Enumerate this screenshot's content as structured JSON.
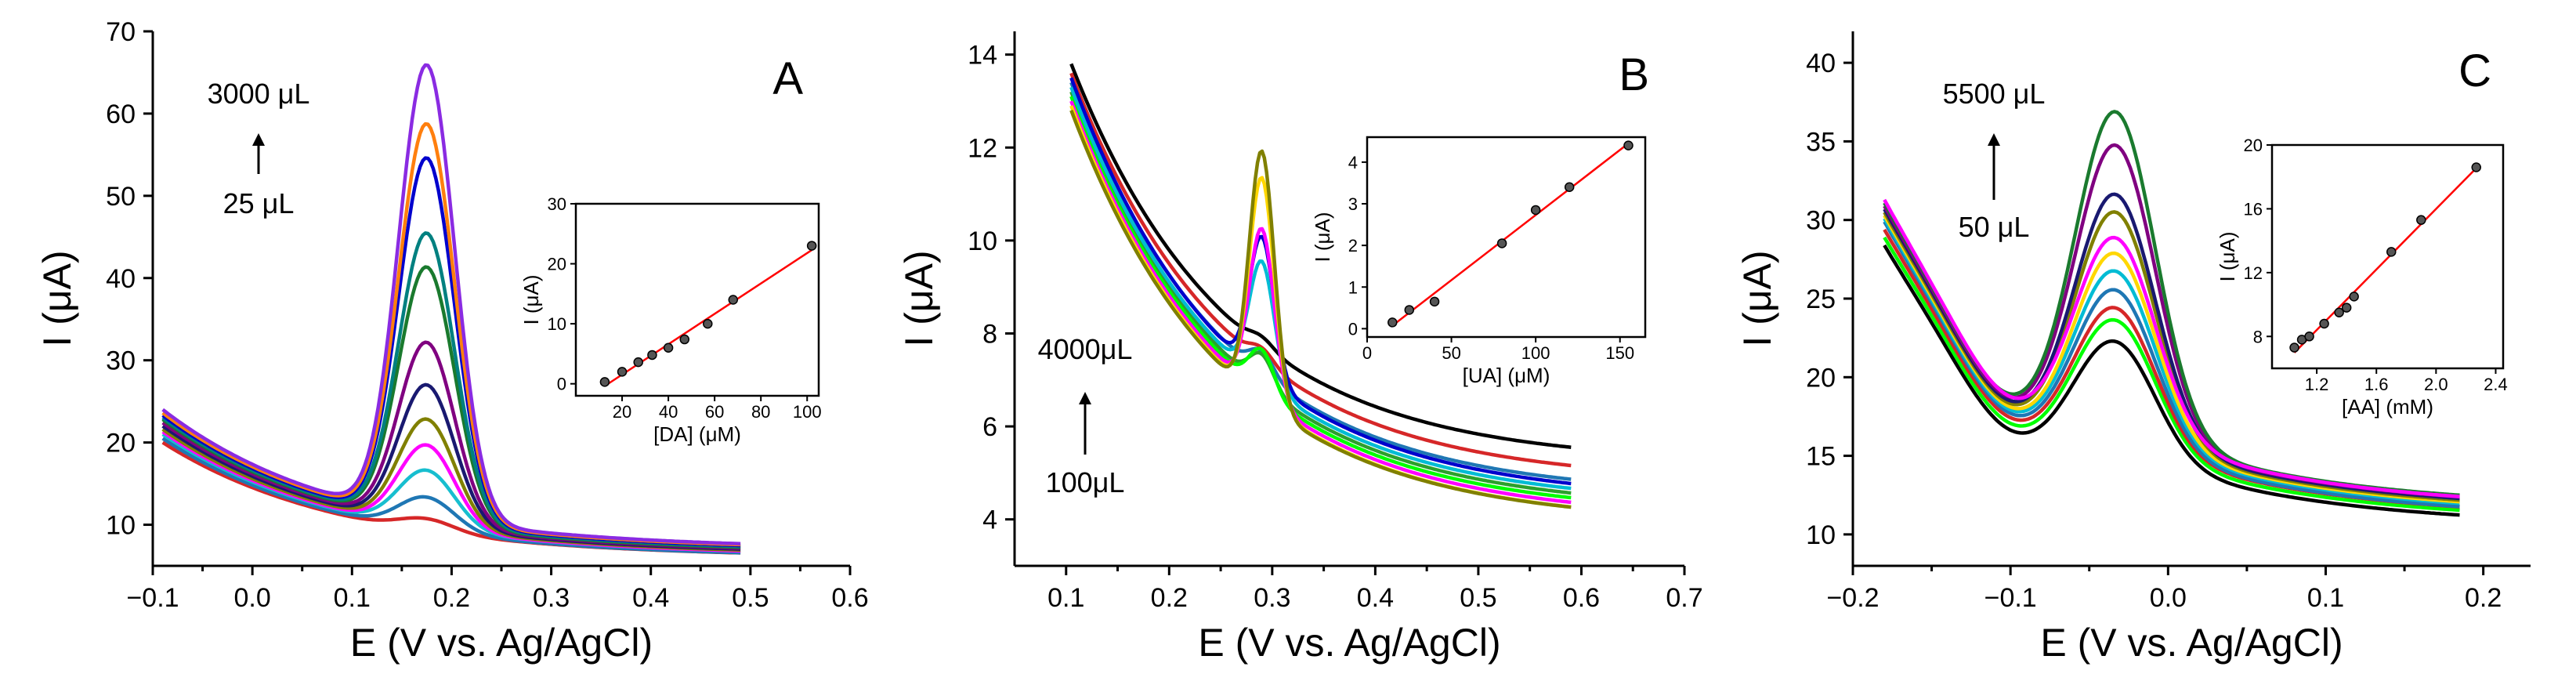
{
  "panels": [
    {
      "label": "A",
      "xlabel": "E (V vs. Ag/AgCl)",
      "ylabel": "I (μA)",
      "xlim": [
        -0.1,
        0.6
      ],
      "ylim": [
        5,
        70
      ],
      "xticks": [
        -0.1,
        0.0,
        0.1,
        0.2,
        0.3,
        0.4,
        0.5,
        0.6
      ],
      "yticks": [
        10,
        20,
        30,
        40,
        50,
        60,
        70
      ],
      "xtick_labels": [
        "−0.1",
        "0.0",
        "0.1",
        "0.2",
        "0.3",
        "0.4",
        "0.5",
        "0.6"
      ],
      "ytick_labels": [
        "10",
        "20",
        "30",
        "40",
        "50",
        "60",
        "70"
      ],
      "annotation_top": "3000 μL",
      "annotation_bottom": "25 μL",
      "curve_x": [
        -0.09,
        0.49
      ],
      "peak_x": 0.175,
      "peak_width": 0.028,
      "curves": [
        {
          "color": "#d62728",
          "start": 20.0,
          "end": 6.0,
          "peak": 1.5
        },
        {
          "color": "#1f77b4",
          "start": 20.5,
          "end": 6.0,
          "peak": 4.0
        },
        {
          "color": "#17becf",
          "start": 21.0,
          "end": 6.2,
          "peak": 7.0
        },
        {
          "color": "#ff00ff",
          "start": 21.3,
          "end": 6.2,
          "peak": 10.0
        },
        {
          "color": "#808000",
          "start": 21.6,
          "end": 6.3,
          "peak": 13.0
        },
        {
          "color": "#191970",
          "start": 22.0,
          "end": 6.4,
          "peak": 17.0
        },
        {
          "color": "#800080",
          "start": 22.4,
          "end": 6.5,
          "peak": 22.0
        },
        {
          "color": "#1a7a2e",
          "start": 22.8,
          "end": 6.6,
          "peak": 31.0
        },
        {
          "color": "#008080",
          "start": 23.0,
          "end": 6.7,
          "peak": 35.0
        },
        {
          "color": "#0000cd",
          "start": 23.3,
          "end": 6.8,
          "peak": 44.0
        },
        {
          "color": "#ff7f0e",
          "start": 23.6,
          "end": 6.9,
          "peak": 48.0
        },
        {
          "color": "#8a2be2",
          "start": 24.0,
          "end": 7.0,
          "peak": 55.0
        }
      ],
      "inset": {
        "xlabel": "[DA] (μM)",
        "ylabel": "I (μA)",
        "xlim": [
          0,
          105
        ],
        "ylim": [
          -2,
          30
        ],
        "xticks": [
          20,
          40,
          60,
          80,
          100
        ],
        "yticks": [
          0,
          10,
          20,
          30
        ],
        "xtick_labels": [
          "20",
          "40",
          "60",
          "80",
          "100"
        ],
        "ytick_labels": [
          "0",
          "10",
          "20",
          "30"
        ],
        "x": [
          12.5,
          20,
          27,
          33,
          40,
          47,
          57,
          68,
          102
        ],
        "y": [
          0.3,
          2.0,
          3.6,
          4.8,
          6.0,
          7.4,
          10.0,
          14.0,
          23.0
        ]
      }
    },
    {
      "label": "B",
      "xlabel": "E (V vs. Ag/AgCl)",
      "ylabel": "I (μA)",
      "xlim": [
        0.05,
        0.7
      ],
      "ylim": [
        3,
        14.5
      ],
      "xticks": [
        0.1,
        0.2,
        0.3,
        0.4,
        0.5,
        0.6,
        0.7
      ],
      "yticks": [
        4,
        6,
        8,
        10,
        12,
        14
      ],
      "xtick_labels": [
        "0.1",
        "0.2",
        "0.3",
        "0.4",
        "0.5",
        "0.6",
        "0.7"
      ],
      "ytick_labels": [
        "4",
        "6",
        "8",
        "10",
        "12",
        "14"
      ],
      "annotation_top": "4000μL",
      "annotation_bottom": "100μL",
      "curve_x": [
        0.105,
        0.59
      ],
      "peak_x": 0.29,
      "peak_width": 0.012,
      "curves": [
        {
          "color": "#000000",
          "start": 13.8,
          "end": 5.2,
          "peak": 0.2
        },
        {
          "color": "#d62728",
          "start": 13.6,
          "end": 4.8,
          "peak": 0.3
        },
        {
          "color": "#1f77b4",
          "start": 13.4,
          "end": 4.5,
          "peak": 0.5
        },
        {
          "color": "#2ca02c",
          "start": 13.2,
          "end": 4.2,
          "peak": 0.7
        },
        {
          "color": "#00ff00",
          "start": 13.1,
          "end": 4.1,
          "peak": 0.9
        },
        {
          "color": "#00bcd4",
          "start": 13.3,
          "end": 4.3,
          "peak": 2.6
        },
        {
          "color": "#0000cd",
          "start": 13.5,
          "end": 4.4,
          "peak": 3.0
        },
        {
          "color": "#ff00ff",
          "start": 13.0,
          "end": 4.0,
          "peak": 3.6
        },
        {
          "color": "#ffd700",
          "start": 12.9,
          "end": 3.9,
          "peak": 4.8
        },
        {
          "color": "#808000",
          "start": 12.8,
          "end": 3.9,
          "peak": 5.4
        }
      ],
      "inset": {
        "xlabel": "[UA] (μM)",
        "ylabel": "I (μA)",
        "xlim": [
          0,
          165
        ],
        "ylim": [
          -0.2,
          4.6
        ],
        "xticks": [
          0,
          50,
          100,
          150
        ],
        "yticks": [
          0,
          1,
          2,
          3,
          4
        ],
        "xtick_labels": [
          "0",
          "50",
          "100",
          "150"
        ],
        "ytick_labels": [
          "0",
          "1",
          "2",
          "3",
          "4"
        ],
        "x": [
          15,
          25,
          40,
          80,
          100,
          120,
          155
        ],
        "y": [
          0.15,
          0.45,
          0.65,
          2.05,
          2.85,
          3.4,
          4.4
        ]
      }
    },
    {
      "label": "C",
      "xlabel": "E (V vs. Ag/AgCl)",
      "ylabel": "I (μA)",
      "xlim": [
        -0.2,
        0.23
      ],
      "ylim": [
        8,
        42
      ],
      "xticks": [
        -0.2,
        -0.1,
        0.0,
        0.1,
        0.2
      ],
      "yticks": [
        10,
        15,
        20,
        25,
        30,
        35,
        40
      ],
      "xtick_labels": [
        "−0.2",
        "−0.1",
        "0.0",
        "0.1",
        "0.2"
      ],
      "ytick_labels": [
        "10",
        "15",
        "20",
        "25",
        "30",
        "35",
        "40"
      ],
      "annotation_top": "5500 μL",
      "annotation_bottom": "50 μL",
      "curve_x": [
        -0.18,
        0.185
      ],
      "peak_x": -0.033,
      "peak_width": 0.025,
      "curves": [
        {
          "color": "#000000",
          "start": 28.5,
          "end": 10.5,
          "peak": 7.0
        },
        {
          "color": "#00ff00",
          "start": 29.0,
          "end": 10.8,
          "peak": 8.0
        },
        {
          "color": "#d62728",
          "start": 29.5,
          "end": 11.0,
          "peak": 8.5
        },
        {
          "color": "#1f77b4",
          "start": 30.0,
          "end": 11.0,
          "peak": 9.5
        },
        {
          "color": "#00bcd4",
          "start": 30.2,
          "end": 11.2,
          "peak": 10.5
        },
        {
          "color": "#ffd700",
          "start": 30.4,
          "end": 11.3,
          "peak": 11.5
        },
        {
          "color": "#808000",
          "start": 30.6,
          "end": 11.4,
          "peak": 14.0
        },
        {
          "color": "#191970",
          "start": 30.8,
          "end": 11.5,
          "peak": 15.0
        },
        {
          "color": "#800080",
          "start": 31.0,
          "end": 11.6,
          "peak": 18.0
        },
        {
          "color": "#1a7a2e",
          "start": 31.2,
          "end": 11.7,
          "peak": 20.0
        },
        {
          "color": "#ff00ff",
          "start": 31.4,
          "end": 11.6,
          "peak": 12.0
        }
      ],
      "inset": {
        "xlabel": "[AA] (mM)",
        "ylabel": "I (μA)",
        "xlim": [
          0.9,
          2.45
        ],
        "ylim": [
          6,
          20
        ],
        "xticks": [
          1.2,
          1.6,
          2.0,
          2.4
        ],
        "yticks": [
          8,
          12,
          16,
          20
        ],
        "xtick_labels": [
          "1.2",
          "1.6",
          "2.0",
          "2.4"
        ],
        "ytick_labels": [
          "8",
          "12",
          "16",
          "20"
        ],
        "x": [
          1.05,
          1.1,
          1.15,
          1.25,
          1.35,
          1.4,
          1.45,
          1.7,
          1.9,
          2.27
        ],
        "y": [
          7.3,
          7.8,
          8.0,
          8.8,
          9.5,
          9.8,
          10.5,
          13.3,
          15.3,
          18.6
        ]
      }
    }
  ]
}
